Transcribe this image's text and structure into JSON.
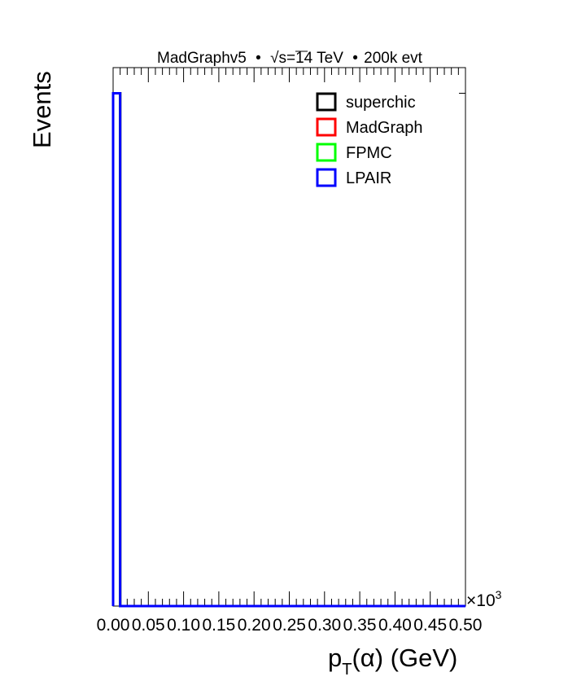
{
  "chart_data": {
    "type": "histogram",
    "header": {
      "generator": "MadGraphv5",
      "bullet": "•",
      "sqrt_symbol": "√",
      "energy": "s=14 TeV",
      "events": "200k evt"
    },
    "ylabel": "Events",
    "xlabel": {
      "base": "p",
      "subscript": "T",
      "rest": "(α) (GeV)"
    },
    "x_multiplier": {
      "prefix": "×10",
      "exponent": "3"
    },
    "xlim": [
      0,
      0.5
    ],
    "x_tick_labels": [
      "0.00",
      "0.05",
      "0.10",
      "0.15",
      "0.20",
      "0.25",
      "0.30",
      "0.35",
      "0.40",
      "0.45",
      "0.50"
    ],
    "bins": {
      "edges": [
        0,
        0.01,
        0.5
      ],
      "note_values_unlabelled_y_axis": true
    },
    "series": [
      {
        "name": "superchic",
        "color": "#000000",
        "values": [
          1.0,
          0.0
        ]
      },
      {
        "name": "MadGraph",
        "color": "#ff0000",
        "values": [
          1.0,
          0.0
        ]
      },
      {
        "name": "FPMC",
        "color": "#00ff00",
        "values": [
          1.0,
          0.0
        ]
      },
      {
        "name": "LPAIR",
        "color": "#0000ff",
        "values": [
          1.0,
          0.0
        ]
      }
    ],
    "ylim": [
      0,
      1.05
    ],
    "legend_position": "top-right"
  }
}
